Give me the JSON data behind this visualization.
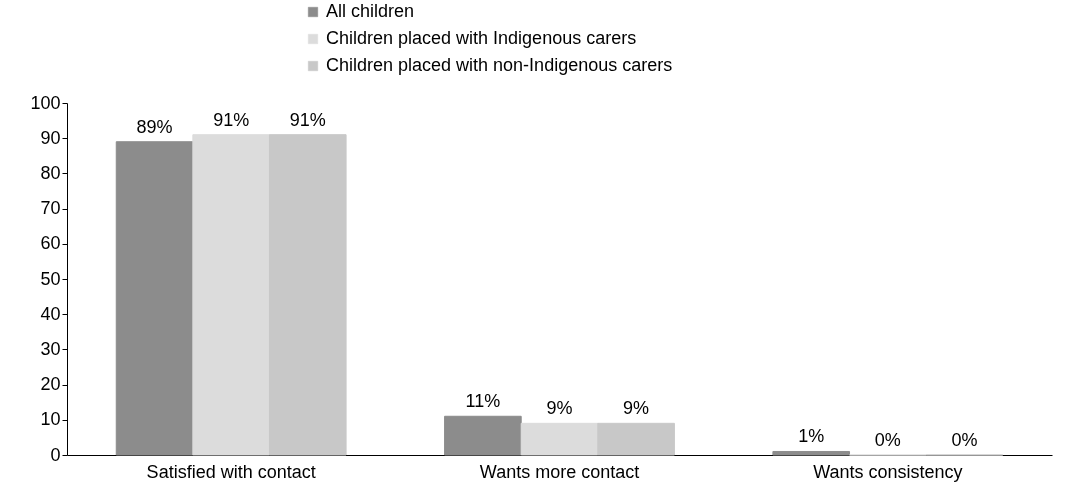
{
  "chart_data": {
    "type": "bar",
    "categories": [
      "Satisfied with contact",
      "Wants more contact",
      "Wants consistency"
    ],
    "series": [
      {
        "name": "All children",
        "color": "#8c8c8c",
        "values": [
          89,
          11,
          1
        ],
        "value_labels": [
          "89%",
          "11%",
          "1%"
        ]
      },
      {
        "name": "Children placed with Indigenous carers",
        "color": "#dcdcdc",
        "values": [
          91,
          9,
          0
        ],
        "value_labels": [
          "91%",
          "9%",
          "0%"
        ]
      },
      {
        "name": "Children placed with non-Indigenous carers",
        "color": "#c8c8c8",
        "values": [
          91,
          9,
          0
        ],
        "value_labels": [
          "91%",
          "9%",
          "0%"
        ]
      }
    ],
    "ylim": [
      0,
      100
    ],
    "yticks": [
      0,
      10,
      20,
      30,
      40,
      50,
      60,
      70,
      80,
      90,
      100
    ],
    "legend": "top"
  }
}
